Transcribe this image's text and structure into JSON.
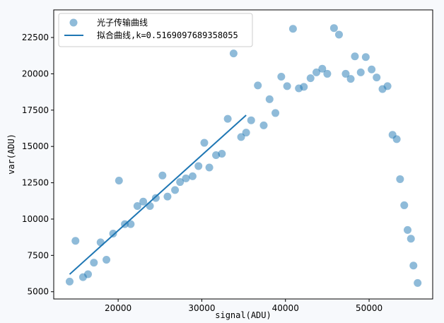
{
  "chart_data": {
    "type": "scatter",
    "xlabel": "signal(ADU)",
    "ylabel": "var(ADU)",
    "xlim": [
      12300,
      57600
    ],
    "ylim": [
      4500,
      24400
    ],
    "xticks": [
      20000,
      30000,
      40000,
      50000
    ],
    "xtick_labels": [
      "20000",
      "30000",
      "40000",
      "50000"
    ],
    "yticks": [
      5000,
      7500,
      10000,
      12500,
      15000,
      17500,
      20000,
      22500
    ],
    "ytick_labels": [
      "5000",
      "7500",
      "10000",
      "12500",
      "15000",
      "17500",
      "20000",
      "22500"
    ],
    "grid": false,
    "legend_position": "top-left",
    "colors": {
      "scatter": "#1f77b4",
      "line": "#1f77b4"
    },
    "series": [
      {
        "name": "光子传输曲线",
        "kind": "scatter",
        "points": [
          [
            14200,
            5700
          ],
          [
            14900,
            8500
          ],
          [
            15800,
            6000
          ],
          [
            16400,
            6200
          ],
          [
            17100,
            7000
          ],
          [
            17900,
            8400
          ],
          [
            18600,
            7200
          ],
          [
            19400,
            9000
          ],
          [
            20100,
            12650
          ],
          [
            20800,
            9650
          ],
          [
            21500,
            9650
          ],
          [
            22300,
            10900
          ],
          [
            23000,
            11200
          ],
          [
            23800,
            10900
          ],
          [
            24500,
            11450
          ],
          [
            25300,
            13000
          ],
          [
            25900,
            11550
          ],
          [
            26800,
            12000
          ],
          [
            27400,
            12550
          ],
          [
            28100,
            12800
          ],
          [
            28900,
            12950
          ],
          [
            29600,
            13650
          ],
          [
            30300,
            15250
          ],
          [
            30900,
            13550
          ],
          [
            31700,
            14400
          ],
          [
            32400,
            14500
          ],
          [
            33100,
            16900
          ],
          [
            33800,
            21400
          ],
          [
            34700,
            15650
          ],
          [
            35300,
            15950
          ],
          [
            35900,
            16800
          ],
          [
            36700,
            19200
          ],
          [
            37400,
            16450
          ],
          [
            38100,
            18250
          ],
          [
            38800,
            17300
          ],
          [
            39500,
            19800
          ],
          [
            40200,
            19150
          ],
          [
            40900,
            23100
          ],
          [
            41600,
            19000
          ],
          [
            42200,
            19100
          ],
          [
            43000,
            19700
          ],
          [
            43700,
            20100
          ],
          [
            44400,
            20350
          ],
          [
            45000,
            20000
          ],
          [
            45800,
            23150
          ],
          [
            46400,
            22700
          ],
          [
            47200,
            20000
          ],
          [
            47800,
            19650
          ],
          [
            48300,
            21200
          ],
          [
            49000,
            20100
          ],
          [
            49600,
            21150
          ],
          [
            50300,
            20300
          ],
          [
            50900,
            19750
          ],
          [
            51600,
            18950
          ],
          [
            52200,
            19150
          ],
          [
            52800,
            15800
          ],
          [
            53300,
            15500
          ],
          [
            53700,
            12750
          ],
          [
            54200,
            10950
          ],
          [
            54600,
            9250
          ],
          [
            55000,
            8650
          ],
          [
            55300,
            6800
          ],
          [
            55800,
            5600
          ]
        ]
      },
      {
        "name": "拟合曲线,k=0.5169097689358055",
        "kind": "line",
        "points": [
          [
            14200,
            6200
          ],
          [
            35300,
            17150
          ]
        ]
      }
    ]
  }
}
